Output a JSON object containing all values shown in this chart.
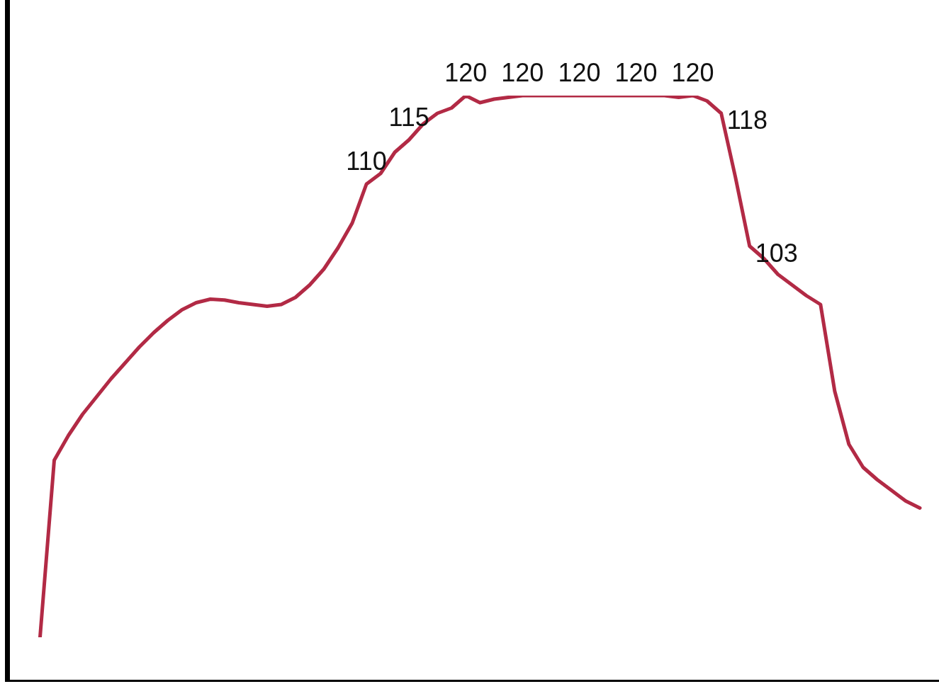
{
  "chart_data": {
    "type": "line",
    "relative": false,
    "categories": [
      null,
      null,
      null,
      null,
      null,
      null,
      null,
      null,
      null,
      null,
      null,
      null,
      null,
      null,
      null,
      null,
      null,
      null,
      null,
      null,
      null,
      null,
      null,
      null,
      null,
      null,
      null,
      null,
      null,
      null,
      null,
      null,
      null,
      null,
      null,
      null,
      null,
      null,
      null,
      null,
      null,
      null,
      null,
      null,
      null,
      null,
      null,
      null,
      null,
      null,
      null,
      null,
      null,
      null,
      null,
      null,
      null,
      null,
      null,
      null,
      null,
      null,
      null
    ],
    "series": [
      {
        "color": "#b22a45",
        "values": [
          58.8,
          78.8,
          81.6,
          84.0,
          86.0,
          88.0,
          89.8,
          91.6,
          93.2,
          94.6,
          95.8,
          96.6,
          97.0,
          96.9,
          96.6,
          96.4,
          96.2,
          96.4,
          97.2,
          98.6,
          100.4,
          102.8,
          105.6,
          110,
          111.2,
          113.6,
          115,
          116.8,
          118.0,
          118.6,
          120,
          119.2,
          119.6,
          119.8,
          120,
          120,
          120,
          120,
          120,
          120,
          120,
          120,
          120,
          120,
          120,
          119.8,
          120,
          119.4,
          118,
          110.8,
          103,
          101.6,
          99.8,
          98.6,
          97.4,
          96.4,
          86.6,
          80.6,
          78.0,
          76.6,
          75.4,
          74.2,
          73.4
        ],
        "value_labels": [
          null,
          null,
          null,
          null,
          null,
          null,
          null,
          null,
          null,
          null,
          null,
          null,
          null,
          null,
          null,
          null,
          null,
          null,
          null,
          null,
          null,
          null,
          null,
          "110",
          null,
          null,
          "115",
          null,
          null,
          null,
          "120",
          null,
          null,
          null,
          "120",
          null,
          null,
          null,
          "120",
          null,
          null,
          null,
          "120",
          null,
          null,
          null,
          "120",
          null,
          "118",
          null,
          "103",
          null,
          null,
          null,
          null,
          null,
          null,
          null,
          null,
          null,
          null,
          null,
          null
        ]
      }
    ],
    "grid": false,
    "legend": false,
    "marker": "none",
    "line_style": "solid"
  }
}
